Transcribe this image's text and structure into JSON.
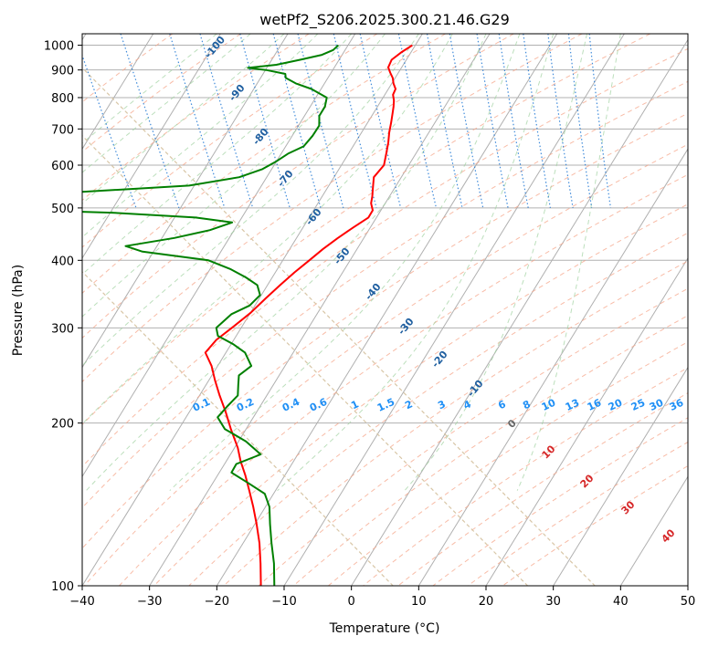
{
  "chart_data": {
    "type": "line",
    "subtype": "skew-t-log-p",
    "title": "wetPf2_S206.2025.300.21.46.G29",
    "xlabel": "Temperature (°C)",
    "ylabel": "Pressure (hPa)",
    "xlim": [
      -40,
      50
    ],
    "ylim": [
      1050,
      100
    ],
    "y_scale": "log",
    "grid": true,
    "x_ticks": [
      -40,
      -30,
      -20,
      -10,
      0,
      10,
      20,
      30,
      40,
      50
    ],
    "y_ticks": [
      100,
      200,
      300,
      400,
      500,
      600,
      700,
      800,
      900,
      1000
    ],
    "series": [
      {
        "color": "#ff0000",
        "pressure": [
          1000,
          970,
          940,
          910,
          890,
          870,
          850,
          830,
          810,
          790,
          770,
          750,
          720,
          690,
          660,
          630,
          600,
          570,
          545,
          525,
          510,
          495,
          480,
          460,
          440,
          420,
          400,
          380,
          360,
          340,
          320,
          300,
          285,
          270,
          255,
          240,
          225,
          210,
          195,
          180,
          170,
          160,
          150,
          140,
          130,
          120,
          110,
          100
        ],
        "temperature": [
          8,
          5.7,
          3.6,
          2.4,
          2.2,
          2.1,
          1.7,
          1.5,
          0.6,
          0.2,
          -0.4,
          -1.1,
          -2.2,
          -3.4,
          -4.5,
          -5.8,
          -7.2,
          -9.8,
          -10.9,
          -11.8,
          -12.6,
          -13.0,
          -14.3,
          -17.5,
          -20.7,
          -23.9,
          -27.0,
          -30.3,
          -33.6,
          -37.0,
          -40.5,
          -44.7,
          -48.1,
          -50.9,
          -51.2,
          -52.0,
          -52.7,
          -53.3,
          -54.1,
          -54.8,
          -55.6,
          -56.2,
          -57.0,
          -57.9,
          -59.0,
          -60.3,
          -62.0,
          -64.0
        ]
      },
      {
        "color": "#008000",
        "pressure": [
          1000,
          980,
          960,
          940,
          920,
          908,
          900,
          885,
          870,
          850,
          830,
          800,
          770,
          740,
          710,
          680,
          650,
          630,
          610,
          590,
          570,
          550,
          535,
          525,
          515,
          505,
          497,
          490,
          480,
          470,
          455,
          440,
          425,
          415,
          400,
          385,
          372,
          360,
          345,
          330,
          318,
          300,
          290,
          280,
          270,
          255,
          245,
          235,
          225,
          215,
          205,
          195,
          185,
          175,
          168,
          162,
          155,
          148,
          140,
          130,
          120,
          110,
          100
        ],
        "temperature": [
          -3.0,
          -4.2,
          -6.3,
          -10.0,
          -14.0,
          -18.5,
          -16.0,
          -13.5,
          -13.8,
          -12.8,
          -11.0,
          -9.5,
          -10.6,
          -12.3,
          -13.2,
          -15.1,
          -17.4,
          -20.4,
          -22.8,
          -25.6,
          -29.8,
          -38.0,
          -55.0,
          -80.0,
          -90.0,
          -85.0,
          -68.0,
          -52.0,
          -40.0,
          -35.0,
          -39.0,
          -45.0,
          -53.0,
          -51.0,
          -42.0,
          -39.5,
          -38.0,
          -37.0,
          -37.5,
          -40.0,
          -43.5,
          -47.0,
          -47.5,
          -46.0,
          -45.0,
          -45.3,
          -48.0,
          -49.0,
          -50.0,
          -52.5,
          -55.0,
          -55.0,
          -53.0,
          -52.0,
          -56.5,
          -58.0,
          -56.5,
          -55.0,
          -55.5,
          -57.0,
          -58.5,
          -60.0,
          -62.0
        ]
      }
    ],
    "mixing_ratio_lines": {
      "style": "dotted",
      "color": "#1f77d4",
      "values": [
        0.1,
        0.2,
        0.4,
        0.6,
        1,
        1.5,
        2,
        3,
        4,
        6,
        8,
        10,
        13,
        16,
        20,
        25,
        30,
        36
      ],
      "labels": [
        "0.1",
        "0.2",
        "0.4",
        "0.6",
        "1",
        "1.5",
        "2",
        "3",
        "4",
        "6",
        "8",
        "10",
        "13",
        "16",
        "20",
        "25",
        "30",
        "36"
      ]
    },
    "dry_adiabat_labels": {
      "color": "#1f5fa0",
      "values": [
        -100,
        -90,
        -80,
        -70,
        -60,
        -50,
        -40,
        -30,
        -20,
        -10
      ],
      "labels": [
        "-100",
        "-90",
        "-80",
        "-70",
        "-60",
        "-50",
        "-40",
        "-30",
        "-20",
        "-10"
      ]
    },
    "moist_adiabat_labels": {
      "color": "#d62728",
      "values": [
        10,
        20,
        30,
        40
      ],
      "labels": [
        "10",
        "20",
        "30",
        "40"
      ]
    },
    "zero_label": {
      "color": "#666666",
      "value": 0,
      "label": "0"
    }
  }
}
